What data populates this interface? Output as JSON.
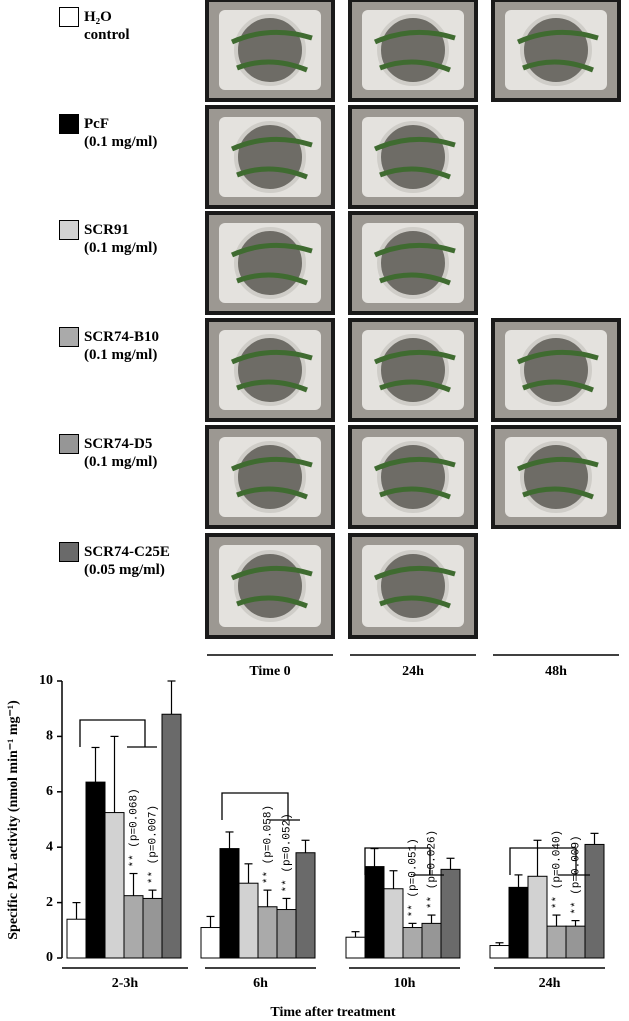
{
  "chart_data": {
    "type": "bar",
    "y_label": "Specific PAL activity (nmol min⁻¹ mg⁻¹)",
    "x_label": "Time after treatment",
    "categories": [
      "2-3h",
      "6h",
      "10h",
      "24h"
    ],
    "series": [
      {
        "name": "H₂O\ncontrol",
        "color": "#ffffff",
        "values": [
          1.4,
          1.1,
          0.75,
          0.45
        ],
        "errors": [
          0.6,
          0.4,
          0.2,
          0.1
        ]
      },
      {
        "name": "PcF\n(0.1 mg/ml)",
        "color": "#000000",
        "values": [
          6.35,
          3.95,
          3.3,
          2.55
        ],
        "errors": [
          1.25,
          0.6,
          0.65,
          0.45
        ]
      },
      {
        "name": "SCR91\n(0.1 mg/ml)",
        "color": "#d2d2d2",
        "values": [
          5.25,
          2.7,
          2.5,
          2.95
        ],
        "errors": [
          2.75,
          0.7,
          0.65,
          1.3
        ]
      },
      {
        "name": "SCR74-B10\n(0.1 mg/ml)",
        "color": "#aaaaaa",
        "values": [
          2.25,
          1.85,
          1.1,
          1.15
        ],
        "errors": [
          0.8,
          0.6,
          0.15,
          0.4
        ],
        "annotations": [
          "** (p=0.068)",
          "** (p=0.058)",
          "** (p=0.051)",
          "** (p=0.040)"
        ]
      },
      {
        "name": "SCR74-D5\n(0.1 mg/ml)",
        "color": "#969696",
        "values": [
          2.15,
          1.75,
          1.25,
          1.15
        ],
        "errors": [
          0.3,
          0.4,
          0.3,
          0.2
        ],
        "annotations": [
          "** (p=0.007)",
          "** (p=0.052)",
          "** (p=0.026)",
          "** (p=0.009)"
        ]
      },
      {
        "name": "SCR74-C25E\n(0.05 mg/ml)",
        "color": "#6a6a6a",
        "values": [
          8.8,
          3.8,
          3.2,
          4.1
        ],
        "errors": [
          1.2,
          0.45,
          0.4,
          0.4
        ]
      }
    ],
    "ylim": [
      0,
      10
    ],
    "yticks": [
      0,
      2,
      4,
      6,
      8,
      10
    ]
  },
  "photos": {
    "columns": [
      "Time 0",
      "24h",
      "48h"
    ]
  }
}
